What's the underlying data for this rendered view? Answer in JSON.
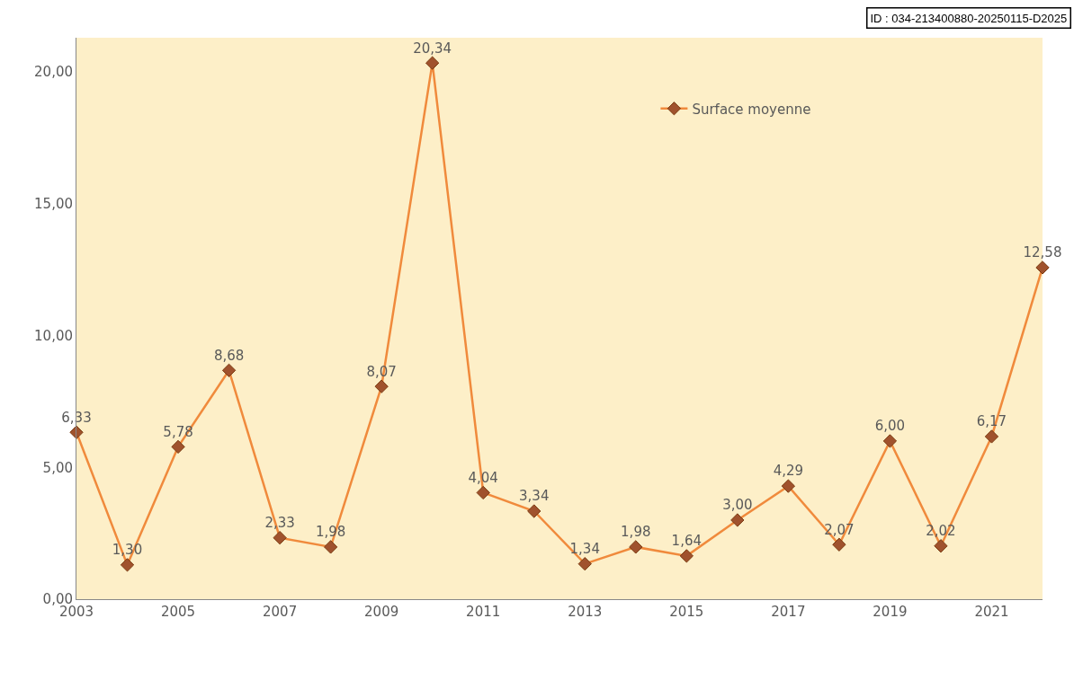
{
  "chart_data": {
    "type": "line",
    "x": [
      2003,
      2004,
      2005,
      2006,
      2007,
      2008,
      2009,
      2010,
      2011,
      2012,
      2013,
      2014,
      2015,
      2016,
      2017,
      2018,
      2019,
      2020,
      2021,
      2022
    ],
    "series": [
      {
        "name": "Surface moyenne",
        "color": "#f08a3c",
        "values": [
          6.33,
          1.3,
          5.78,
          8.68,
          2.33,
          1.98,
          8.07,
          20.34,
          4.04,
          3.34,
          1.34,
          1.98,
          1.64,
          3.0,
          4.29,
          2.07,
          6.0,
          2.02,
          6.17,
          12.58
        ],
        "value_labels": [
          "6,33",
          "1,30",
          "5,78",
          "8,68",
          "2,33",
          "1,98",
          "8,07",
          "20,34",
          "4,04",
          "3,34",
          "1,34",
          "1,98",
          "1,64",
          "3,00",
          "4,29",
          "2,07",
          "6,00",
          "2,02",
          "6,17",
          "12,58"
        ]
      }
    ],
    "xlim": [
      2003,
      2022
    ],
    "xticks": [
      2003,
      2005,
      2007,
      2009,
      2011,
      2013,
      2015,
      2017,
      2019,
      2021
    ],
    "ylim": [
      0,
      21.3
    ],
    "yticks": [
      {
        "value": 0,
        "label": "0,00"
      },
      {
        "value": 5,
        "label": "5,00"
      },
      {
        "value": 10,
        "label": "10,00"
      },
      {
        "value": 15,
        "label": "15,00"
      },
      {
        "value": 20,
        "label": "20,00"
      }
    ],
    "grid": false,
    "legend": "top right",
    "marker": "diamond",
    "line_style": "solid",
    "annotations": [
      "ID : 034-213400880-20250115-D2025"
    ]
  }
}
